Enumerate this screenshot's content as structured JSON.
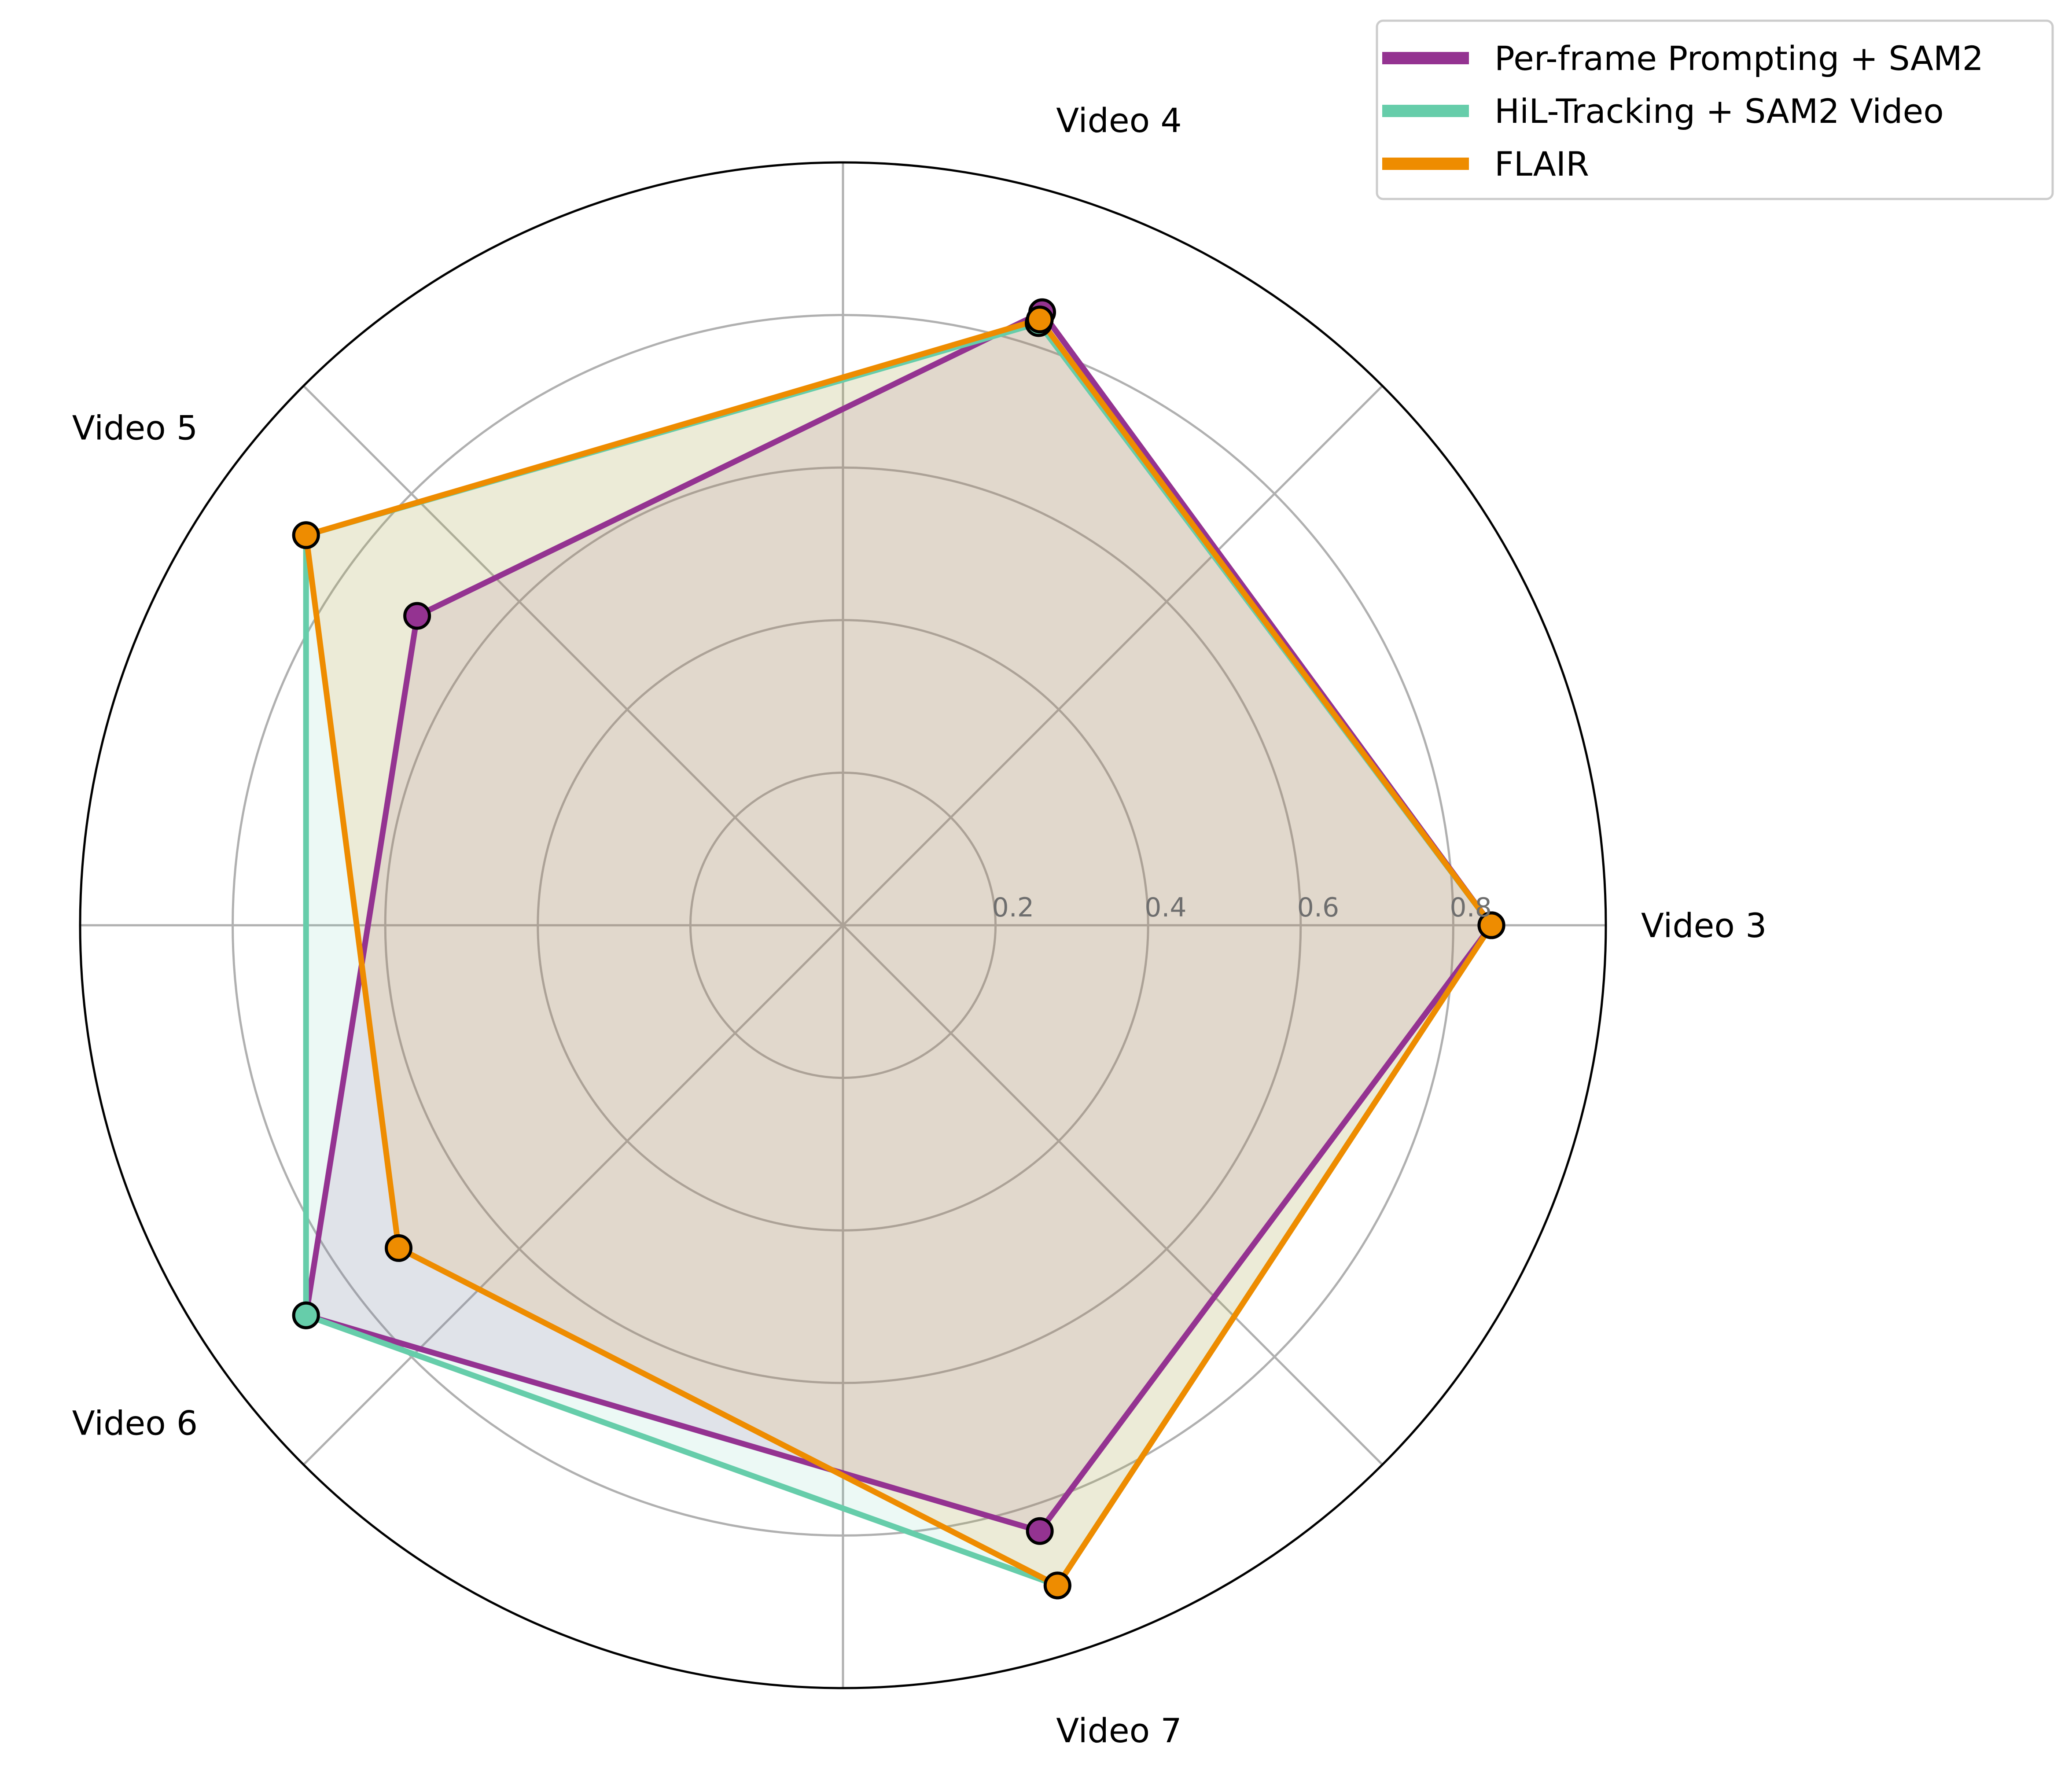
{
  "chart_data": {
    "type": "radar",
    "categories": [
      "Video 3",
      "Video 4",
      "Video 5",
      "Video 6",
      "Video 7"
    ],
    "series": [
      {
        "name": "Per-frame Prompting + SAM2",
        "color": "#943391",
        "values": [
          0.85,
          0.845,
          0.69,
          0.87,
          0.835
        ]
      },
      {
        "name": "HiL-Tracking + SAM2 Video",
        "color": "#66cdaa",
        "values": [
          0.85,
          0.83,
          0.87,
          0.87,
          0.91
        ]
      },
      {
        "name": "FLAIR",
        "color": "#ee8c00",
        "values": [
          0.85,
          0.835,
          0.87,
          0.72,
          0.91
        ]
      }
    ],
    "radial_ticks": [
      0.2,
      0.4,
      0.6,
      0.8
    ],
    "rlim": [
      0,
      1.0
    ],
    "grid": true,
    "legend": "top-right"
  }
}
